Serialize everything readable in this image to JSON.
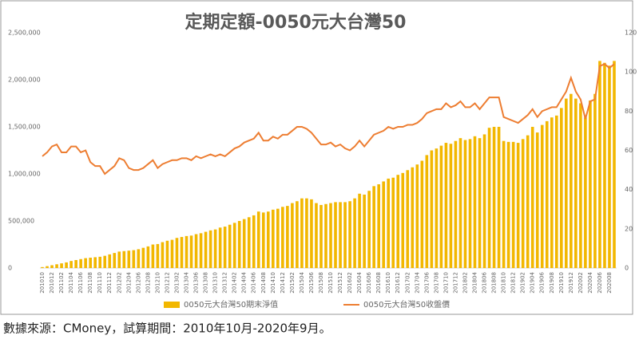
{
  "chart_data": {
    "type": "bar_line",
    "title": "定期定額-0050元大台灣50",
    "source": "數據來源：CMoney，試算期間：2010年10月-2020年9月。",
    "categories": [
      "201010",
      null,
      "201012",
      null,
      "201102",
      null,
      "201104",
      null,
      "201106",
      null,
      "201108",
      null,
      "201110",
      null,
      "201112",
      null,
      "201202",
      null,
      "201204",
      null,
      "201206",
      null,
      "201208",
      null,
      "201210",
      null,
      "201212",
      null,
      "201302",
      null,
      "201304",
      null,
      "201306",
      null,
      "201308",
      null,
      "201310",
      null,
      "201312",
      null,
      "201402",
      null,
      "201404",
      null,
      "201406",
      null,
      "201408",
      null,
      "201410",
      null,
      "201412",
      null,
      "201502",
      null,
      "201504",
      null,
      "201506",
      null,
      "201508",
      null,
      "201510",
      null,
      "201512",
      null,
      "201602",
      null,
      "201604",
      null,
      "201606",
      null,
      "201608",
      null,
      "201610",
      null,
      "201612",
      null,
      "201702",
      null,
      "201704",
      null,
      "201706",
      null,
      "201708",
      null,
      "201710",
      null,
      "201712",
      null,
      "201802",
      null,
      "201804",
      null,
      "201806",
      null,
      "201808",
      null,
      "201810",
      null,
      "201812",
      null,
      "201902",
      null,
      "201904",
      null,
      "201906",
      null,
      "201908",
      null,
      "201910",
      null,
      "201912",
      null,
      "202002",
      null,
      "202004",
      null,
      "202006",
      null,
      "202008",
      null
    ],
    "series": [
      {
        "name": "0050元大台灣50期末淨值",
        "type": "bar",
        "color": "#f2b700",
        "values": [
          10000,
          20000,
          30000,
          40000,
          50000,
          60000,
          75000,
          85000,
          95000,
          105000,
          110000,
          115000,
          120000,
          130000,
          145000,
          160000,
          175000,
          180000,
          185000,
          190000,
          200000,
          215000,
          230000,
          250000,
          255000,
          275000,
          290000,
          300000,
          320000,
          330000,
          340000,
          345000,
          360000,
          370000,
          385000,
          400000,
          410000,
          430000,
          440000,
          460000,
          480000,
          500000,
          520000,
          540000,
          560000,
          600000,
          590000,
          600000,
          620000,
          630000,
          650000,
          660000,
          690000,
          710000,
          740000,
          740000,
          730000,
          690000,
          670000,
          680000,
          690000,
          700000,
          700000,
          700000,
          710000,
          740000,
          790000,
          780000,
          820000,
          870000,
          890000,
          920000,
          950000,
          960000,
          990000,
          1010000,
          1040000,
          1070000,
          1100000,
          1140000,
          1200000,
          1250000,
          1270000,
          1300000,
          1330000,
          1320000,
          1350000,
          1380000,
          1360000,
          1370000,
          1400000,
          1380000,
          1420000,
          1490000,
          1500000,
          1500000,
          1350000,
          1340000,
          1340000,
          1330000,
          1370000,
          1410000,
          1500000,
          1440000,
          1520000,
          1560000,
          1600000,
          1620000,
          1700000,
          1800000,
          1850000,
          1800000,
          1750000,
          1600000,
          1780000,
          1850000,
          2200000,
          2180000,
          2150000,
          2200000
        ]
      },
      {
        "name": "0050元大台灣50收盤價",
        "type": "line",
        "axis": "y2",
        "color": "#ed7d31",
        "values": [
          57,
          59,
          62,
          63,
          59,
          59,
          62,
          62,
          59,
          60,
          54,
          52,
          52,
          48,
          50,
          52,
          56,
          55,
          51,
          50,
          50,
          51,
          53,
          55,
          51,
          53,
          54,
          55,
          55,
          56,
          56,
          55,
          57,
          56,
          57,
          58,
          57,
          58,
          57,
          59,
          61,
          62,
          64,
          65,
          66,
          69,
          65,
          65,
          67,
          66,
          68,
          68,
          70,
          72,
          72,
          71,
          69,
          66,
          63,
          63,
          64,
          62,
          63,
          61,
          60,
          62,
          65,
          62,
          65,
          68,
          69,
          70,
          72,
          71,
          72,
          72,
          73,
          73,
          74,
          76,
          79,
          80,
          81,
          81,
          84,
          82,
          83,
          85,
          82,
          82,
          84,
          81,
          84,
          87,
          87,
          87,
          77,
          76,
          75,
          74,
          76,
          78,
          81,
          77,
          80,
          81,
          82,
          82,
          86,
          90,
          97,
          90,
          86,
          76,
          85,
          86,
          103,
          104,
          102,
          104
        ]
      }
    ],
    "ylim": [
      0,
      2500000
    ],
    "yticks": [
      0,
      {
        "value": 500000,
        "label": "500,000"
      },
      {
        "value": 1000000,
        "label": "1,000,000"
      },
      {
        "value": 1500000,
        "label": "1,500,000"
      },
      {
        "value": 2000000,
        "label": "2,000,000"
      },
      {
        "value": 2500000,
        "label": "2,500,000"
      }
    ],
    "y2lim": [
      0,
      120
    ],
    "y2ticks": [
      0,
      20,
      40,
      60,
      80,
      100,
      120
    ],
    "grid": false
  }
}
